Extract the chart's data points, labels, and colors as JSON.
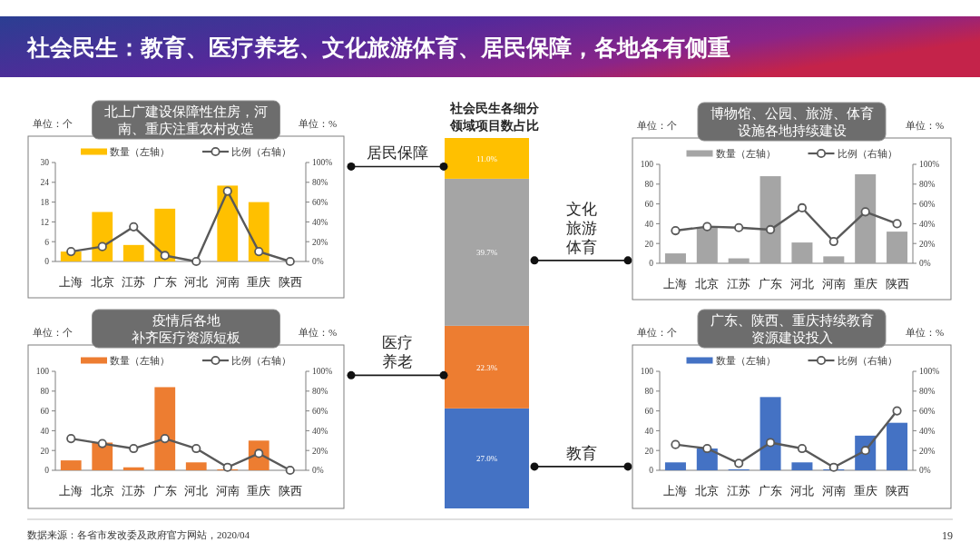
{
  "chart_data": [
    {
      "type": "other",
      "title": "社会民生：教育、医疗养老、文化旅游体育、居民保障，各地各有侧重",
      "annotations": [
        "数据来源：各省市发改委及政府官方网站，2020/04",
        "19"
      ]
    },
    {
      "type": "bar",
      "title": "北上广建设保障性住房，河南、重庆注重农村改造",
      "ylabel": "单位：个",
      "y2label": "单位：%",
      "categories": [
        "上海",
        "北京",
        "江苏",
        "广东",
        "河北",
        "河南",
        "重庆",
        "陕西"
      ],
      "series": [
        {
          "name": "数量（左轴）",
          "type": "bar",
          "color": "#ffc000",
          "values": [
            3,
            15,
            5,
            16,
            0,
            23,
            18,
            0
          ]
        },
        {
          "name": "比例（右轴）",
          "type": "line",
          "axis": "y2",
          "color": "#595959",
          "values": [
            10,
            15,
            35,
            6,
            0,
            71,
            10,
            0
          ]
        }
      ],
      "ylim": [
        0,
        30
      ],
      "yticks": [
        0,
        6,
        12,
        18,
        24,
        30
      ],
      "y2lim": [
        0,
        100
      ],
      "y2ticks": [
        {
          "value": 0,
          "label": "0%"
        },
        {
          "value": 20,
          "label": "20%"
        },
        {
          "value": 40,
          "label": "40%"
        },
        {
          "value": 60,
          "label": "60%"
        },
        {
          "value": 80,
          "label": "80%"
        },
        {
          "value": 100,
          "label": "100%"
        }
      ],
      "legend": "top",
      "marker": "circle"
    },
    {
      "type": "bar",
      "stacked": true,
      "title": "社会民生各细分领域项目数占比",
      "categories": [
        null
      ],
      "series": [
        {
          "name": "教育",
          "color": "#4472c4",
          "values": [
            27.0
          ],
          "value_labels": [
            "27.0%"
          ]
        },
        {
          "name": "医疗养老",
          "color": "#ed7d31",
          "values": [
            22.3
          ],
          "value_labels": [
            "22.3%"
          ]
        },
        {
          "name": "文化旅游体育",
          "color": "#a5a5a5",
          "values": [
            39.7
          ],
          "value_labels": [
            "39.7%"
          ]
        },
        {
          "name": "居民保障",
          "color": "#ffc000",
          "values": [
            11.0
          ],
          "value_labels": [
            "11.0%"
          ]
        }
      ]
    },
    {
      "type": "bar",
      "title": "博物馆、公园、旅游、体育设施各地持续建设",
      "ylabel": "单位：个",
      "y2label": "单位：%",
      "categories": [
        "上海",
        "北京",
        "江苏",
        "广东",
        "河北",
        "河南",
        "重庆",
        "陕西"
      ],
      "series": [
        {
          "name": "数量（左轴）",
          "type": "bar",
          "color": "#a5a5a5",
          "values": [
            10,
            36,
            5,
            88,
            21,
            7,
            90,
            32
          ]
        },
        {
          "name": "比例（右轴）",
          "type": "line",
          "axis": "y2",
          "color": "#595959",
          "values": [
            33,
            37,
            36,
            34,
            56,
            22,
            52,
            40
          ]
        }
      ],
      "ylim": [
        0,
        100
      ],
      "yticks": [
        0,
        20,
        40,
        60,
        80,
        100
      ],
      "y2lim": [
        0,
        100
      ],
      "y2ticks": [
        {
          "value": 0,
          "label": "0%"
        },
        {
          "value": 20,
          "label": "20%"
        },
        {
          "value": 40,
          "label": "40%"
        },
        {
          "value": 60,
          "label": "60%"
        },
        {
          "value": 80,
          "label": "80%"
        },
        {
          "value": 100,
          "label": "100%"
        }
      ],
      "legend": "top",
      "marker": "circle"
    },
    {
      "type": "bar",
      "title": "疫情后各地补齐医疗资源短板",
      "ylabel": "单位：个",
      "y2label": "单位：%",
      "categories": [
        "上海",
        "北京",
        "江苏",
        "广东",
        "河北",
        "河南",
        "重庆",
        "陕西"
      ],
      "series": [
        {
          "name": "数量（左轴）",
          "type": "bar",
          "color": "#ed7d31",
          "values": [
            10,
            28,
            3,
            84,
            8,
            1,
            30,
            0
          ]
        },
        {
          "name": "比例（右轴）",
          "type": "line",
          "axis": "y2",
          "color": "#595959",
          "values": [
            32,
            27,
            22,
            32,
            22,
            3,
            17,
            0
          ]
        }
      ],
      "ylim": [
        0,
        100
      ],
      "yticks": [
        0,
        20,
        40,
        60,
        80,
        100
      ],
      "y2lim": [
        0,
        100
      ],
      "y2ticks": [
        {
          "value": 0,
          "label": "0%"
        },
        {
          "value": 20,
          "label": "20%"
        },
        {
          "value": 40,
          "label": "40%"
        },
        {
          "value": 60,
          "label": "60%"
        },
        {
          "value": 80,
          "label": "80%"
        },
        {
          "value": 100,
          "label": "100%"
        }
      ],
      "legend": "top",
      "marker": "circle"
    },
    {
      "type": "bar",
      "title": "广东、陕西、重庆持续教育资源建设投入",
      "ylabel": "单位：个",
      "y2label": "单位：%",
      "categories": [
        "上海",
        "北京",
        "江苏",
        "广东",
        "河北",
        "河南",
        "重庆",
        "陕西"
      ],
      "series": [
        {
          "name": "数量（左轴）",
          "type": "bar",
          "color": "#4472c4",
          "values": [
            8,
            22,
            1,
            74,
            8,
            1,
            35,
            48
          ]
        },
        {
          "name": "比例（右轴）",
          "type": "line",
          "axis": "y2",
          "color": "#595959",
          "values": [
            26,
            22,
            7,
            28,
            22,
            3,
            20,
            60
          ]
        }
      ],
      "ylim": [
        0,
        100
      ],
      "yticks": [
        0,
        20,
        40,
        60,
        80,
        100
      ],
      "y2lim": [
        0,
        100
      ],
      "y2ticks": [
        {
          "value": 0,
          "label": "0%"
        },
        {
          "value": 20,
          "label": "20%"
        },
        {
          "value": 40,
          "label": "40%"
        },
        {
          "value": 60,
          "label": "60%"
        },
        {
          "value": 80,
          "label": "80%"
        },
        {
          "value": 100,
          "label": "100%"
        }
      ],
      "legend": "top",
      "marker": "circle"
    }
  ]
}
